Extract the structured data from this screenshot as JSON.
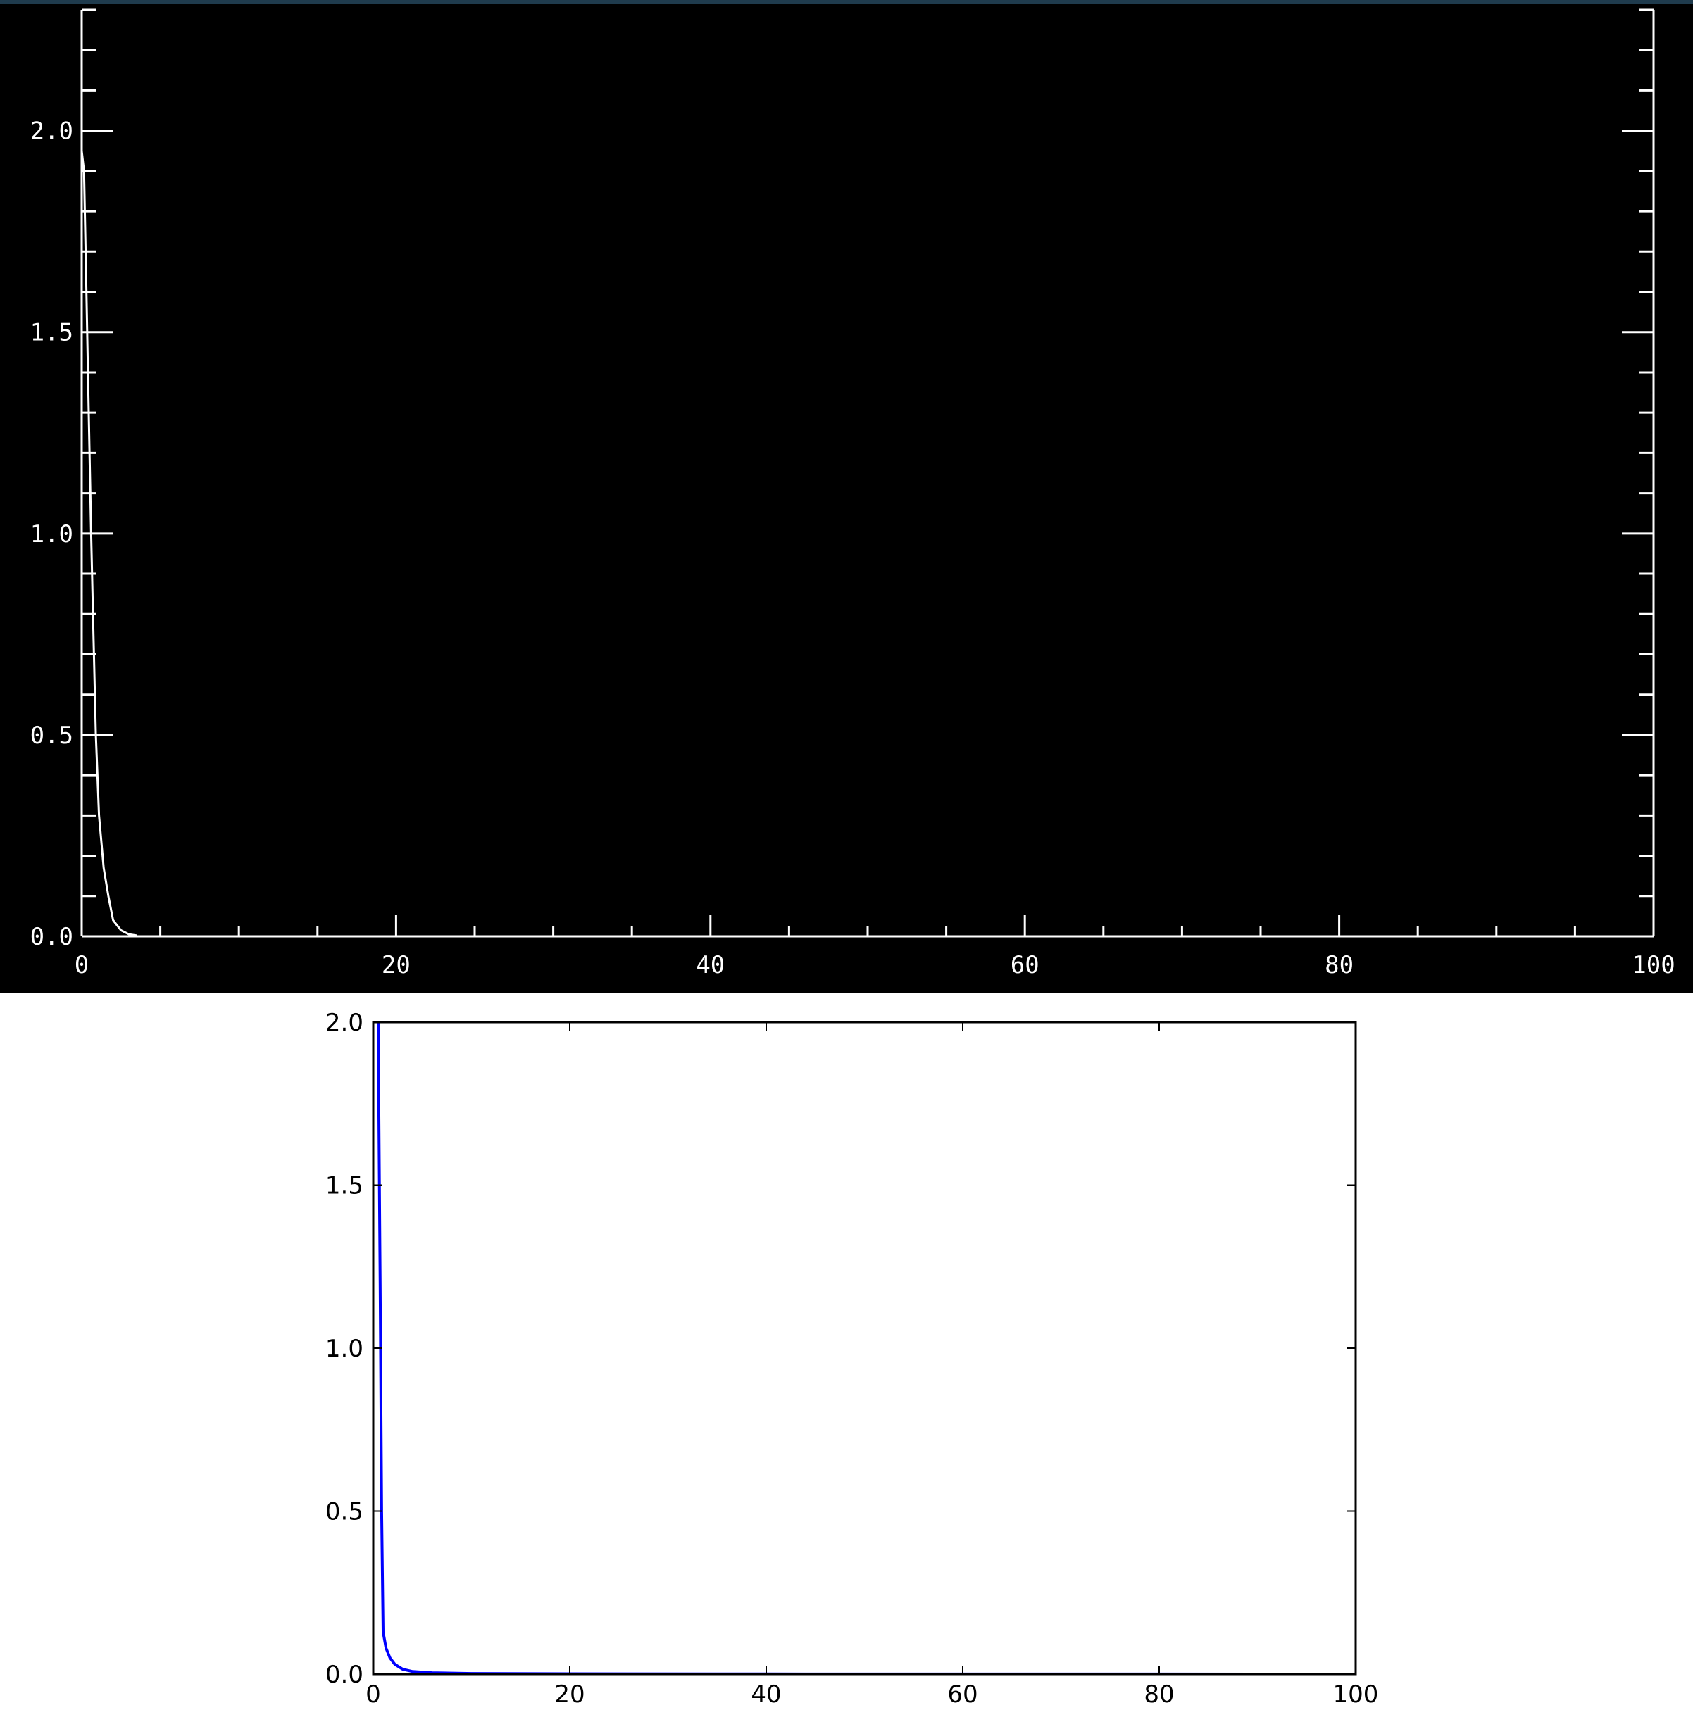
{
  "chart_data": [
    {
      "type": "line",
      "style": "idl-dark",
      "title": "",
      "xlabel": "",
      "ylabel": "",
      "xlim": [
        0,
        100
      ],
      "ylim": [
        0,
        2.3
      ],
      "xticks": [
        0,
        20,
        40,
        60,
        80,
        100
      ],
      "xtick_labels": [
        "0",
        "20",
        "40",
        "60",
        "80",
        "100"
      ],
      "yticks": [
        0.0,
        0.5,
        1.0,
        1.5,
        2.0
      ],
      "ytick_labels": [
        "0.0",
        "0.5",
        "1.0",
        "1.5",
        "2.0"
      ],
      "grid": false,
      "colors": {
        "background": "#000000",
        "axes": "#ffffff",
        "line": "#ffffff"
      },
      "series": [
        {
          "x": [
            0,
            0.15,
            0.3,
            0.45,
            0.6,
            0.75,
            0.9,
            1.1,
            1.4,
            1.7,
            2.0,
            2.5,
            3.0,
            3.5
          ],
          "y": [
            1.95,
            1.9,
            1.6,
            1.3,
            1.0,
            0.75,
            0.5,
            0.3,
            0.17,
            0.1,
            0.04,
            0.015,
            0.005,
            0.002
          ]
        }
      ]
    },
    {
      "type": "line",
      "style": "matplotlib",
      "title": "",
      "xlabel": "",
      "ylabel": "",
      "xlim": [
        0,
        100
      ],
      "ylim": [
        0,
        2.0
      ],
      "xticks": [
        0,
        20,
        40,
        60,
        80,
        100
      ],
      "xtick_labels": [
        "0",
        "20",
        "40",
        "60",
        "80",
        "100"
      ],
      "yticks": [
        0.0,
        0.5,
        1.0,
        1.5,
        2.0
      ],
      "ytick_labels": [
        "0.0",
        "0.5",
        "1.0",
        "1.5",
        "2.0"
      ],
      "grid": false,
      "colors": {
        "background": "#ffffff",
        "axes": "#000000",
        "line": "#0000ff"
      },
      "series": [
        {
          "x": [
            0.5,
            0.7,
            0.85,
            1.0,
            1.3,
            1.7,
            2.2,
            3.0,
            4.0,
            6.0,
            10,
            20,
            40,
            60,
            80,
            99
          ],
          "y": [
            2.0,
            1.2,
            0.5,
            0.13,
            0.08,
            0.05,
            0.03,
            0.015,
            0.008,
            0.004,
            0.002,
            0.001,
            0.0005,
            0.0003,
            0.0002,
            0.0001
          ]
        }
      ]
    }
  ]
}
